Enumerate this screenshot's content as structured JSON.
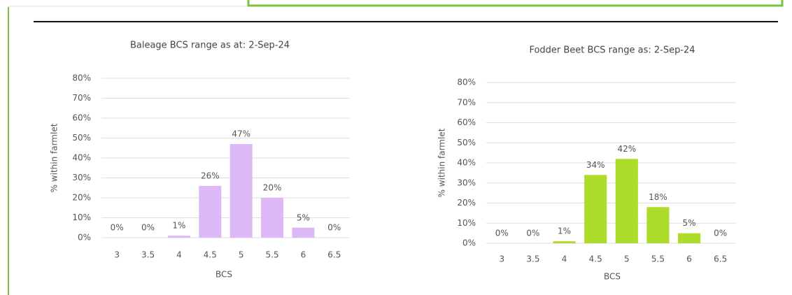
{
  "chart_data": [
    {
      "type": "bar",
      "title": "Baleage BCS range as at: 2-Sep-24",
      "x_label": "BCS",
      "y_label": "% within farmlet",
      "categories": [
        "3",
        "3.5",
        "4",
        "4.5",
        "5",
        "5.5",
        "6",
        "6.5"
      ],
      "values": [
        0,
        0,
        1,
        26,
        47,
        20,
        5,
        0
      ],
      "value_labels": [
        "0%",
        "0%",
        "1%",
        "26%",
        "47%",
        "20%",
        "5%",
        "0%"
      ],
      "color": "#dcb8f6",
      "ylim": [
        0,
        80
      ],
      "yticks": [
        {
          "value": 0,
          "label": "0%"
        },
        {
          "value": 10,
          "label": "10%"
        },
        {
          "value": 20,
          "label": "20%"
        },
        {
          "value": 30,
          "label": "30%"
        },
        {
          "value": 40,
          "label": "40%"
        },
        {
          "value": 50,
          "label": "50%"
        },
        {
          "value": 60,
          "label": "60%"
        },
        {
          "value": 70,
          "label": "70%"
        },
        {
          "value": 80,
          "label": "80%"
        }
      ],
      "grid": true
    },
    {
      "type": "bar",
      "title": "Fodder Beet BCS range as: 2-Sep-24",
      "x_label": "BCS",
      "y_label": "% within farmlet",
      "categories": [
        "3",
        "3.5",
        "4",
        "4.5",
        "5",
        "5.5",
        "6",
        "6.5"
      ],
      "values": [
        0,
        0,
        1,
        34,
        42,
        18,
        5,
        0
      ],
      "value_labels": [
        "0%",
        "0%",
        "1%",
        "34%",
        "42%",
        "18%",
        "5%",
        "0%"
      ],
      "color": "#addc2a",
      "ylim": [
        0,
        80
      ],
      "yticks": [
        {
          "value": 0,
          "label": "0%"
        },
        {
          "value": 10,
          "label": "10%"
        },
        {
          "value": 20,
          "label": "20%"
        },
        {
          "value": 30,
          "label": "30%"
        },
        {
          "value": 40,
          "label": "40%"
        },
        {
          "value": 50,
          "label": "50%"
        },
        {
          "value": 60,
          "label": "60%"
        },
        {
          "value": 70,
          "label": "70%"
        },
        {
          "value": 80,
          "label": "80%"
        }
      ],
      "grid": true
    }
  ]
}
